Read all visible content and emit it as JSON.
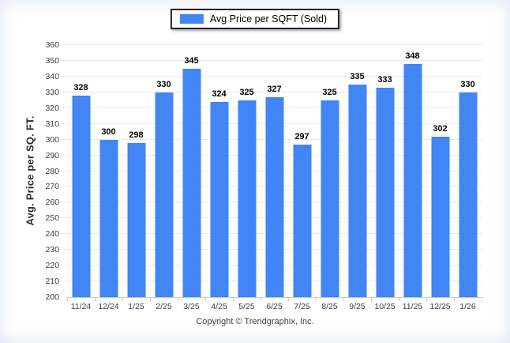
{
  "legend": {
    "label": "Avg Price per SQFT (Sold)"
  },
  "footer": {
    "copyright": "Copyright © Trendgraphix, Inc."
  },
  "chart_data": {
    "type": "bar",
    "title": "Avg Price per SQFT (Sold)",
    "categories": [
      "11/24",
      "12/24",
      "1/25",
      "2/25",
      "3/25",
      "4/25",
      "5/25",
      "6/25",
      "7/25",
      "8/25",
      "9/25",
      "10/25",
      "11/25",
      "12/25",
      "1/26"
    ],
    "values": [
      328,
      300,
      298,
      330,
      345,
      324,
      325,
      327,
      297,
      325,
      335,
      333,
      348,
      302,
      330
    ],
    "xlabel": "",
    "ylabel": "Avg. Price per SQ. FT.",
    "ylim": [
      200,
      360
    ],
    "ytick_step": 10,
    "bar_color": "#4285f4",
    "grid": true,
    "legend_position": "top",
    "data_labels": true
  }
}
